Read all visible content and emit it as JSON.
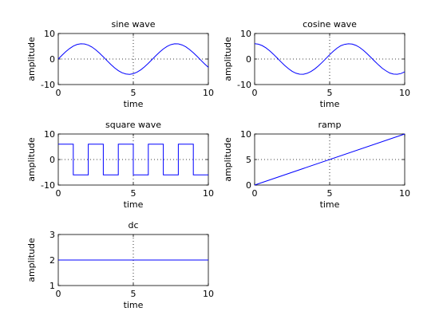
{
  "chart_data": [
    {
      "type": "line",
      "title": "sine wave",
      "xlabel": "time",
      "ylabel": "amplitude",
      "xlim": [
        0,
        10
      ],
      "ylim": [
        -10,
        10
      ],
      "xticks": [
        "0",
        "5",
        "10"
      ],
      "yticks": [
        "-10",
        "0",
        "10"
      ],
      "grid": "dotted lines at x=5 and y=0",
      "series": [
        {
          "color": "#0000ff",
          "x": [
            0,
            0.25,
            0.5,
            0.75,
            1,
            1.25,
            1.5,
            1.75,
            2,
            2.25,
            2.5,
            2.75,
            3,
            3.25,
            3.5,
            3.75,
            4,
            4.25,
            4.5,
            4.75,
            5,
            5.25,
            5.5,
            5.75,
            6,
            6.25,
            6.5,
            6.75,
            7,
            7.25,
            7.5,
            7.75,
            8,
            8.25,
            8.5,
            8.75,
            9,
            9.25,
            9.5,
            9.75,
            10
          ],
          "y": [
            0,
            1.48,
            2.88,
            4.09,
            5.05,
            5.69,
            5.98,
            5.9,
            5.46,
            4.68,
            3.59,
            2.29,
            0.85,
            -0.65,
            -2.11,
            -3.43,
            -4.54,
            -5.37,
            -5.87,
            -6.0,
            -5.75,
            -5.15,
            -4.23,
            -3.06,
            -1.68,
            -0.2,
            1.29,
            2.7,
            3.94,
            4.95,
            5.63,
            5.97,
            5.94,
            5.52,
            4.78,
            3.72,
            2.47,
            1.05,
            -0.45,
            -1.92,
            -3.26
          ]
        }
      ]
    },
    {
      "type": "line",
      "title": "cosine wave",
      "xlabel": "time",
      "ylabel": "amplitude",
      "xlim": [
        0,
        10
      ],
      "ylim": [
        -10,
        10
      ],
      "xticks": [
        "0",
        "5",
        "10"
      ],
      "yticks": [
        "-10",
        "0",
        "10"
      ],
      "grid": "dotted lines at x=5 and y=0",
      "series": [
        {
          "color": "#0000ff",
          "x": [
            0,
            0.25,
            0.5,
            0.75,
            1,
            1.25,
            1.5,
            1.75,
            2,
            2.25,
            2.5,
            2.75,
            3,
            3.25,
            3.5,
            3.75,
            4,
            4.25,
            4.5,
            4.75,
            5,
            5.25,
            5.5,
            5.75,
            6,
            6.25,
            6.5,
            6.75,
            7,
            7.25,
            7.5,
            7.75,
            8,
            8.25,
            8.5,
            8.75,
            9,
            9.25,
            9.5,
            9.75,
            10
          ],
          "y": [
            6.0,
            5.81,
            5.27,
            4.39,
            3.24,
            1.89,
            0.42,
            -1.07,
            -2.5,
            -3.75,
            -4.81,
            -5.56,
            -5.94,
            -5.96,
            -5.6,
            -4.9,
            -3.92,
            -2.7,
            -1.31,
            0.17,
            1.7,
            3.09,
            4.3,
            5.23,
            5.76,
            5.99,
            5.85,
            5.36,
            4.53,
            3.4,
            2.08,
            0.62,
            -0.87,
            -2.28,
            -3.59,
            -4.61,
            -5.47,
            -5.91,
            -5.98,
            -5.68,
            -5.03
          ]
        }
      ]
    },
    {
      "type": "line",
      "title": "square wave",
      "xlabel": "time",
      "ylabel": "amplitude",
      "xlim": [
        0,
        10
      ],
      "ylim": [
        -10,
        10
      ],
      "xticks": [
        "0",
        "5",
        "10"
      ],
      "yticks": [
        "-10",
        "0",
        "10"
      ],
      "grid": "dotted lines at x=5 and y=0",
      "series": [
        {
          "color": "#0000ff",
          "x": [
            0,
            1,
            1,
            2,
            2,
            3,
            3,
            4,
            4,
            5,
            5,
            6,
            6,
            7,
            7,
            8,
            8,
            9,
            9,
            10
          ],
          "y": [
            6,
            6,
            -6,
            -6,
            6,
            6,
            -6,
            -6,
            6,
            6,
            -6,
            -6,
            6,
            6,
            -6,
            -6,
            6,
            6,
            -6,
            -6
          ]
        }
      ]
    },
    {
      "type": "line",
      "title": "ramp",
      "xlabel": "time",
      "ylabel": "amplitude",
      "xlim": [
        0,
        10
      ],
      "ylim": [
        0,
        10
      ],
      "xticks": [
        "0",
        "5",
        "10"
      ],
      "yticks": [
        "0",
        "5",
        "10"
      ],
      "grid": "dotted lines at x=5 and y=5",
      "series": [
        {
          "color": "#0000ff",
          "x": [
            0,
            10
          ],
          "y": [
            0,
            10
          ]
        }
      ]
    },
    {
      "type": "line",
      "title": "dc",
      "xlabel": "time",
      "ylabel": "amplitude",
      "xlim": [
        0,
        10
      ],
      "ylim": [
        1,
        3
      ],
      "xticks": [
        "0",
        "5",
        "10"
      ],
      "yticks": [
        "1",
        "2",
        "3"
      ],
      "grid": "dotted lines at x=5 and y=2",
      "series": [
        {
          "color": "#0000ff",
          "x": [
            0,
            10
          ],
          "y": [
            2,
            2
          ]
        }
      ]
    }
  ]
}
